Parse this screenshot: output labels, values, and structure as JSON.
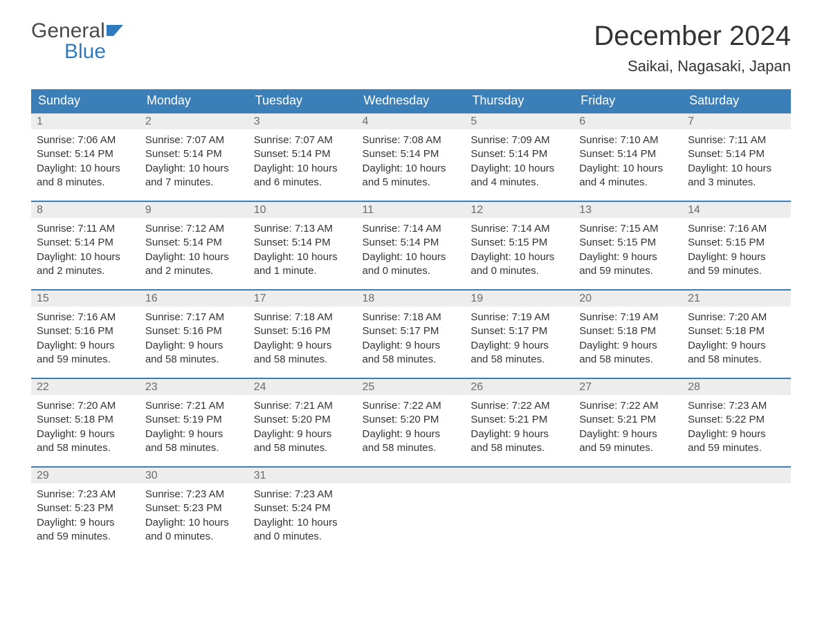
{
  "logo": {
    "word1": "General",
    "word2": "Blue"
  },
  "title": "December 2024",
  "location": "Saikai, Nagasaki, Japan",
  "colors": {
    "header_bg": "#3b7fb8",
    "header_text": "#ffffff",
    "daynum_bg": "#ededed",
    "daynum_text": "#6b6b6b",
    "body_text": "#333333",
    "logo_gray": "#4a4a4a",
    "logo_blue": "#2f7bbf",
    "row_border": "#3b7fb8",
    "page_bg": "#ffffff"
  },
  "layout": {
    "columns": 7,
    "rows": 5,
    "title_fontsize": 40,
    "location_fontsize": 22,
    "header_fontsize": 18,
    "daynum_fontsize": 16,
    "body_fontsize": 15
  },
  "weekdays": [
    "Sunday",
    "Monday",
    "Tuesday",
    "Wednesday",
    "Thursday",
    "Friday",
    "Saturday"
  ],
  "weeks": [
    [
      {
        "n": "1",
        "sr": "Sunrise: 7:06 AM",
        "ss": "Sunset: 5:14 PM",
        "d1": "Daylight: 10 hours",
        "d2": "and 8 minutes."
      },
      {
        "n": "2",
        "sr": "Sunrise: 7:07 AM",
        "ss": "Sunset: 5:14 PM",
        "d1": "Daylight: 10 hours",
        "d2": "and 7 minutes."
      },
      {
        "n": "3",
        "sr": "Sunrise: 7:07 AM",
        "ss": "Sunset: 5:14 PM",
        "d1": "Daylight: 10 hours",
        "d2": "and 6 minutes."
      },
      {
        "n": "4",
        "sr": "Sunrise: 7:08 AM",
        "ss": "Sunset: 5:14 PM",
        "d1": "Daylight: 10 hours",
        "d2": "and 5 minutes."
      },
      {
        "n": "5",
        "sr": "Sunrise: 7:09 AM",
        "ss": "Sunset: 5:14 PM",
        "d1": "Daylight: 10 hours",
        "d2": "and 4 minutes."
      },
      {
        "n": "6",
        "sr": "Sunrise: 7:10 AM",
        "ss": "Sunset: 5:14 PM",
        "d1": "Daylight: 10 hours",
        "d2": "and 4 minutes."
      },
      {
        "n": "7",
        "sr": "Sunrise: 7:11 AM",
        "ss": "Sunset: 5:14 PM",
        "d1": "Daylight: 10 hours",
        "d2": "and 3 minutes."
      }
    ],
    [
      {
        "n": "8",
        "sr": "Sunrise: 7:11 AM",
        "ss": "Sunset: 5:14 PM",
        "d1": "Daylight: 10 hours",
        "d2": "and 2 minutes."
      },
      {
        "n": "9",
        "sr": "Sunrise: 7:12 AM",
        "ss": "Sunset: 5:14 PM",
        "d1": "Daylight: 10 hours",
        "d2": "and 2 minutes."
      },
      {
        "n": "10",
        "sr": "Sunrise: 7:13 AM",
        "ss": "Sunset: 5:14 PM",
        "d1": "Daylight: 10 hours",
        "d2": "and 1 minute."
      },
      {
        "n": "11",
        "sr": "Sunrise: 7:14 AM",
        "ss": "Sunset: 5:14 PM",
        "d1": "Daylight: 10 hours",
        "d2": "and 0 minutes."
      },
      {
        "n": "12",
        "sr": "Sunrise: 7:14 AM",
        "ss": "Sunset: 5:15 PM",
        "d1": "Daylight: 10 hours",
        "d2": "and 0 minutes."
      },
      {
        "n": "13",
        "sr": "Sunrise: 7:15 AM",
        "ss": "Sunset: 5:15 PM",
        "d1": "Daylight: 9 hours",
        "d2": "and 59 minutes."
      },
      {
        "n": "14",
        "sr": "Sunrise: 7:16 AM",
        "ss": "Sunset: 5:15 PM",
        "d1": "Daylight: 9 hours",
        "d2": "and 59 minutes."
      }
    ],
    [
      {
        "n": "15",
        "sr": "Sunrise: 7:16 AM",
        "ss": "Sunset: 5:16 PM",
        "d1": "Daylight: 9 hours",
        "d2": "and 59 minutes."
      },
      {
        "n": "16",
        "sr": "Sunrise: 7:17 AM",
        "ss": "Sunset: 5:16 PM",
        "d1": "Daylight: 9 hours",
        "d2": "and 58 minutes."
      },
      {
        "n": "17",
        "sr": "Sunrise: 7:18 AM",
        "ss": "Sunset: 5:16 PM",
        "d1": "Daylight: 9 hours",
        "d2": "and 58 minutes."
      },
      {
        "n": "18",
        "sr": "Sunrise: 7:18 AM",
        "ss": "Sunset: 5:17 PM",
        "d1": "Daylight: 9 hours",
        "d2": "and 58 minutes."
      },
      {
        "n": "19",
        "sr": "Sunrise: 7:19 AM",
        "ss": "Sunset: 5:17 PM",
        "d1": "Daylight: 9 hours",
        "d2": "and 58 minutes."
      },
      {
        "n": "20",
        "sr": "Sunrise: 7:19 AM",
        "ss": "Sunset: 5:18 PM",
        "d1": "Daylight: 9 hours",
        "d2": "and 58 minutes."
      },
      {
        "n": "21",
        "sr": "Sunrise: 7:20 AM",
        "ss": "Sunset: 5:18 PM",
        "d1": "Daylight: 9 hours",
        "d2": "and 58 minutes."
      }
    ],
    [
      {
        "n": "22",
        "sr": "Sunrise: 7:20 AM",
        "ss": "Sunset: 5:18 PM",
        "d1": "Daylight: 9 hours",
        "d2": "and 58 minutes."
      },
      {
        "n": "23",
        "sr": "Sunrise: 7:21 AM",
        "ss": "Sunset: 5:19 PM",
        "d1": "Daylight: 9 hours",
        "d2": "and 58 minutes."
      },
      {
        "n": "24",
        "sr": "Sunrise: 7:21 AM",
        "ss": "Sunset: 5:20 PM",
        "d1": "Daylight: 9 hours",
        "d2": "and 58 minutes."
      },
      {
        "n": "25",
        "sr": "Sunrise: 7:22 AM",
        "ss": "Sunset: 5:20 PM",
        "d1": "Daylight: 9 hours",
        "d2": "and 58 minutes."
      },
      {
        "n": "26",
        "sr": "Sunrise: 7:22 AM",
        "ss": "Sunset: 5:21 PM",
        "d1": "Daylight: 9 hours",
        "d2": "and 58 minutes."
      },
      {
        "n": "27",
        "sr": "Sunrise: 7:22 AM",
        "ss": "Sunset: 5:21 PM",
        "d1": "Daylight: 9 hours",
        "d2": "and 59 minutes."
      },
      {
        "n": "28",
        "sr": "Sunrise: 7:23 AM",
        "ss": "Sunset: 5:22 PM",
        "d1": "Daylight: 9 hours",
        "d2": "and 59 minutes."
      }
    ],
    [
      {
        "n": "29",
        "sr": "Sunrise: 7:23 AM",
        "ss": "Sunset: 5:23 PM",
        "d1": "Daylight: 9 hours",
        "d2": "and 59 minutes."
      },
      {
        "n": "30",
        "sr": "Sunrise: 7:23 AM",
        "ss": "Sunset: 5:23 PM",
        "d1": "Daylight: 10 hours",
        "d2": "and 0 minutes."
      },
      {
        "n": "31",
        "sr": "Sunrise: 7:23 AM",
        "ss": "Sunset: 5:24 PM",
        "d1": "Daylight: 10 hours",
        "d2": "and 0 minutes."
      },
      null,
      null,
      null,
      null
    ]
  ]
}
